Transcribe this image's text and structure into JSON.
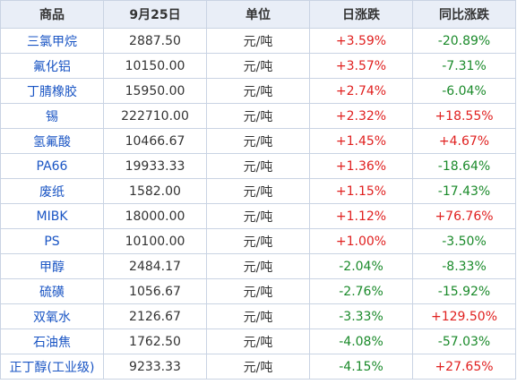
{
  "header": {
    "col_name": "商品",
    "col_price": "9月25日",
    "col_unit": "单位",
    "col_day": "日涨跌",
    "col_yoy": "同比涨跌"
  },
  "colors": {
    "up": "#e0201f",
    "down": "#1a8a2a",
    "name": "#1a55c4",
    "header_bg": "#e9eef7",
    "border": "#c9d3e3"
  },
  "rows": [
    {
      "name": "三氯甲烷",
      "price": "2887.50",
      "unit": "元/吨",
      "day": "+3.59%",
      "day_dir": "up",
      "yoy": "-20.89%",
      "yoy_dir": "down"
    },
    {
      "name": "氟化铝",
      "price": "10150.00",
      "unit": "元/吨",
      "day": "+3.57%",
      "day_dir": "up",
      "yoy": "-7.31%",
      "yoy_dir": "down"
    },
    {
      "name": "丁腈橡胶",
      "price": "15950.00",
      "unit": "元/吨",
      "day": "+2.74%",
      "day_dir": "up",
      "yoy": "-6.04%",
      "yoy_dir": "down"
    },
    {
      "name": "锡",
      "price": "222710.00",
      "unit": "元/吨",
      "day": "+2.32%",
      "day_dir": "up",
      "yoy": "+18.55%",
      "yoy_dir": "up"
    },
    {
      "name": "氢氟酸",
      "price": "10466.67",
      "unit": "元/吨",
      "day": "+1.45%",
      "day_dir": "up",
      "yoy": "+4.67%",
      "yoy_dir": "up"
    },
    {
      "name": "PA66",
      "price": "19933.33",
      "unit": "元/吨",
      "day": "+1.36%",
      "day_dir": "up",
      "yoy": "-18.64%",
      "yoy_dir": "down"
    },
    {
      "name": "废纸",
      "price": "1582.00",
      "unit": "元/吨",
      "day": "+1.15%",
      "day_dir": "up",
      "yoy": "-17.43%",
      "yoy_dir": "down"
    },
    {
      "name": "MIBK",
      "price": "18000.00",
      "unit": "元/吨",
      "day": "+1.12%",
      "day_dir": "up",
      "yoy": "+76.76%",
      "yoy_dir": "up"
    },
    {
      "name": "PS",
      "price": "10100.00",
      "unit": "元/吨",
      "day": "+1.00%",
      "day_dir": "up",
      "yoy": "-3.50%",
      "yoy_dir": "down"
    },
    {
      "name": "甲醇",
      "price": "2484.17",
      "unit": "元/吨",
      "day": "-2.04%",
      "day_dir": "down",
      "yoy": "-8.33%",
      "yoy_dir": "down"
    },
    {
      "name": "硫磺",
      "price": "1056.67",
      "unit": "元/吨",
      "day": "-2.76%",
      "day_dir": "down",
      "yoy": "-15.92%",
      "yoy_dir": "down"
    },
    {
      "name": "双氧水",
      "price": "2126.67",
      "unit": "元/吨",
      "day": "-3.33%",
      "day_dir": "down",
      "yoy": "+129.50%",
      "yoy_dir": "up"
    },
    {
      "name": "石油焦",
      "price": "1762.50",
      "unit": "元/吨",
      "day": "-4.08%",
      "day_dir": "down",
      "yoy": "-57.03%",
      "yoy_dir": "down"
    },
    {
      "name": "正丁醇(工业级)",
      "price": "9233.33",
      "unit": "元/吨",
      "day": "-4.15%",
      "day_dir": "down",
      "yoy": "+27.65%",
      "yoy_dir": "up"
    }
  ]
}
